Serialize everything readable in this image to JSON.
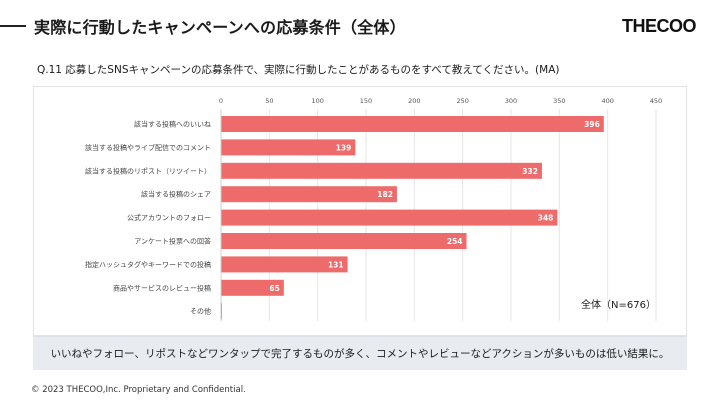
{
  "header": {
    "title": "実際に行動したキャンペーンへの応募条件（全体）",
    "logo": "THECOO"
  },
  "question": "Q.11 応募したSNSキャンペーンの応募条件で、実際に行動したことがあるものをすべて教えてください。(MA)",
  "chart_data": {
    "type": "bar",
    "orientation": "horizontal",
    "categories": [
      "該当する投稿へのいいね",
      "該当する投稿やライブ配信でのコメント",
      "該当する投稿のリポスト（リツイート）",
      "該当する投稿のシェア",
      "公式アカウントのフォロー",
      "アンケート投票への回答",
      "指定ハッシュタグやキーワードでの投稿",
      "商品やサービスのレビュー投稿",
      "その他"
    ],
    "values": [
      396,
      139,
      332,
      182,
      348,
      254,
      131,
      65,
      1
    ],
    "data_labels": [
      "396",
      "139",
      "332",
      "182",
      "348",
      "254",
      "131",
      "65",
      ""
    ],
    "xlim": [
      0,
      450
    ],
    "x_ticks": [
      "0",
      "50",
      "100",
      "150",
      "200",
      "250",
      "300",
      "350",
      "400",
      "450"
    ],
    "grid": true,
    "bar_color": "#ee6b6b",
    "annotation": "全体（N=676）"
  },
  "conclusion": "いいねやフォロー、リポストなどワンタップで完了するものが多く、コメントやレビューなどアクションが多いものは低い結果に。",
  "footer": "© 2023 THECOO,Inc. Proprietary and Confidential."
}
